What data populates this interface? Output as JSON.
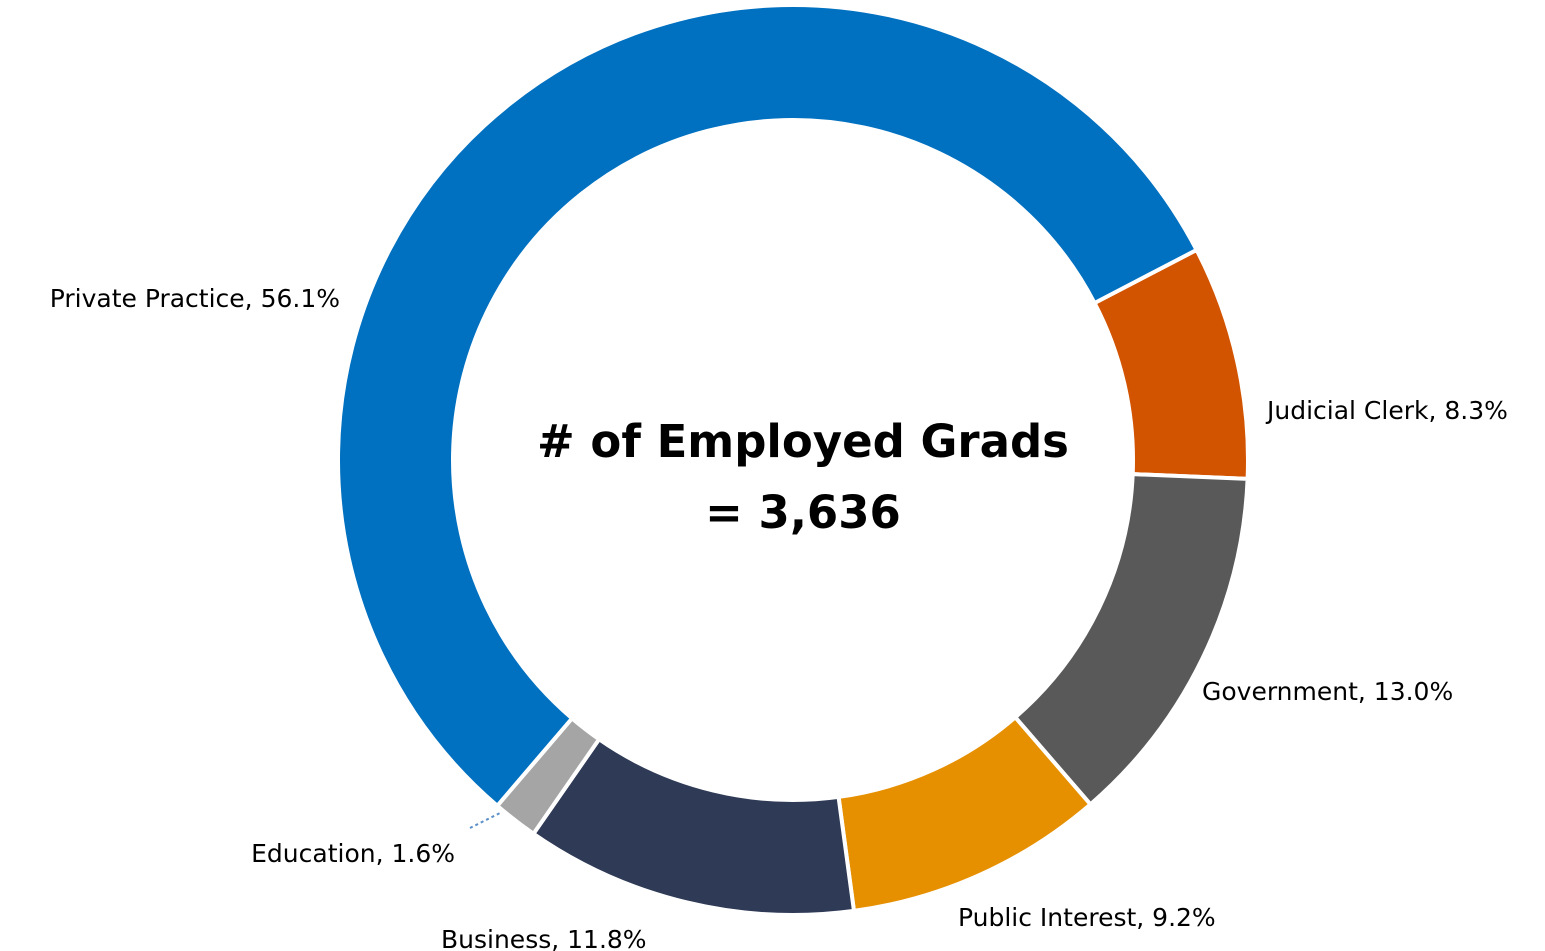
{
  "chart_data": {
    "type": "pie",
    "variant": "donut",
    "center_text": [
      "# of Employed Grads",
      "= 3,636"
    ],
    "slices": [
      {
        "name": "Judicial Clerk",
        "value": 8.3,
        "label": "Judicial Clerk, 8.3%",
        "color": "#D35400"
      },
      {
        "name": "Government",
        "value": 13.0,
        "label": "Government, 13.0%",
        "color": "#595959"
      },
      {
        "name": "Public Interest",
        "value": 9.2,
        "label": "Public Interest, 9.2%",
        "color": "#E69000"
      },
      {
        "name": "Business",
        "value": 11.8,
        "label": "Business, 11.8%",
        "color": "#2E3A56"
      },
      {
        "name": "Education",
        "value": 1.6,
        "label": "Education, 1.6%",
        "color": "#A5A5A5"
      },
      {
        "name": "Private Practice",
        "value": 56.1,
        "label": "Private Practice, 56.1%",
        "color": "#0070C0"
      }
    ],
    "legend": "none",
    "colors": {
      "separator": "#ffffff",
      "leader_line": "#5B8FC9"
    }
  }
}
